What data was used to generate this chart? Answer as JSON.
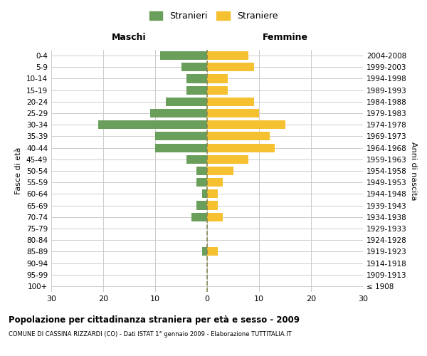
{
  "age_groups": [
    "100+",
    "95-99",
    "90-94",
    "85-89",
    "80-84",
    "75-79",
    "70-74",
    "65-69",
    "60-64",
    "55-59",
    "50-54",
    "45-49",
    "40-44",
    "35-39",
    "30-34",
    "25-29",
    "20-24",
    "15-19",
    "10-14",
    "5-9",
    "0-4"
  ],
  "birth_years": [
    "≤ 1908",
    "1909-1913",
    "1914-1918",
    "1919-1923",
    "1924-1928",
    "1929-1933",
    "1934-1938",
    "1939-1943",
    "1944-1948",
    "1949-1953",
    "1954-1958",
    "1959-1963",
    "1964-1968",
    "1969-1973",
    "1974-1978",
    "1979-1983",
    "1984-1988",
    "1989-1993",
    "1994-1998",
    "1999-2003",
    "2004-2008"
  ],
  "males": [
    0,
    0,
    0,
    1,
    0,
    0,
    3,
    2,
    1,
    2,
    2,
    4,
    10,
    10,
    21,
    11,
    8,
    4,
    4,
    5,
    9
  ],
  "females": [
    0,
    0,
    0,
    2,
    0,
    0,
    3,
    2,
    2,
    3,
    5,
    8,
    13,
    12,
    15,
    10,
    9,
    4,
    4,
    9,
    8
  ],
  "male_color": "#6a9e5b",
  "female_color": "#f5c131",
  "background_color": "#ffffff",
  "grid_color": "#cccccc",
  "center_line_color": "#888855",
  "title": "Popolazione per cittadinanza straniera per età e sesso - 2009",
  "subtitle": "COMUNE DI CASSINA RIZZARDI (CO) - Dati ISTAT 1° gennaio 2009 - Elaborazione TUTTITALIA.IT",
  "xlabel_left": "Maschi",
  "xlabel_right": "Femmine",
  "ylabel_left": "Fasce di età",
  "ylabel_right": "Anni di nascita",
  "legend_male": "Stranieri",
  "legend_female": "Straniere",
  "xlim": 30
}
